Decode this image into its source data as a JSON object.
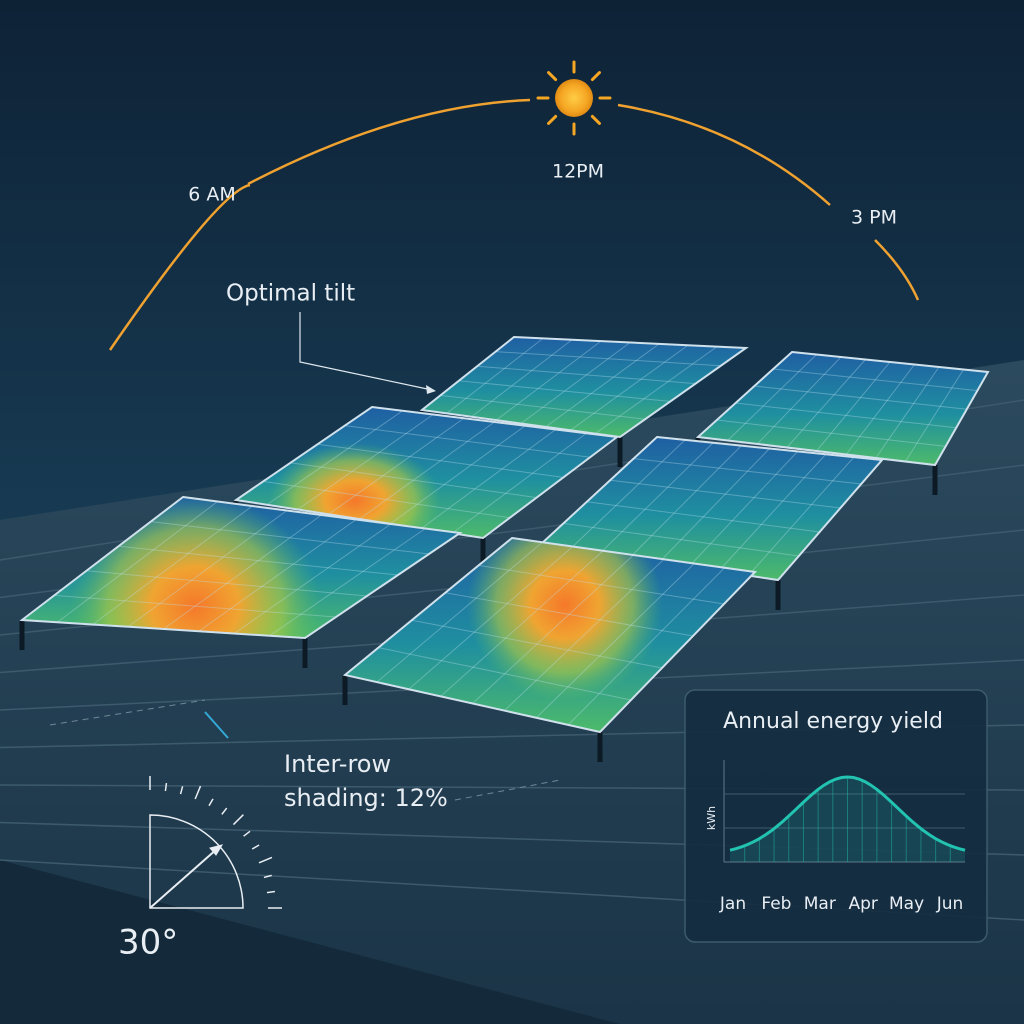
{
  "sun_path": {
    "labels": [
      "6 AM",
      "12PM",
      "3 PM"
    ]
  },
  "callouts": {
    "optimal_tilt": "Optimal tilt",
    "shading": [
      "Inter-row",
      "shading: 12%"
    ],
    "tilt_angle": "30°"
  },
  "inset": {
    "title": "Annual energy yield",
    "y_label": "kWh",
    "categories": [
      "Jan",
      "Feb",
      "Mar",
      "Apr",
      "May",
      "Jun"
    ]
  }
}
